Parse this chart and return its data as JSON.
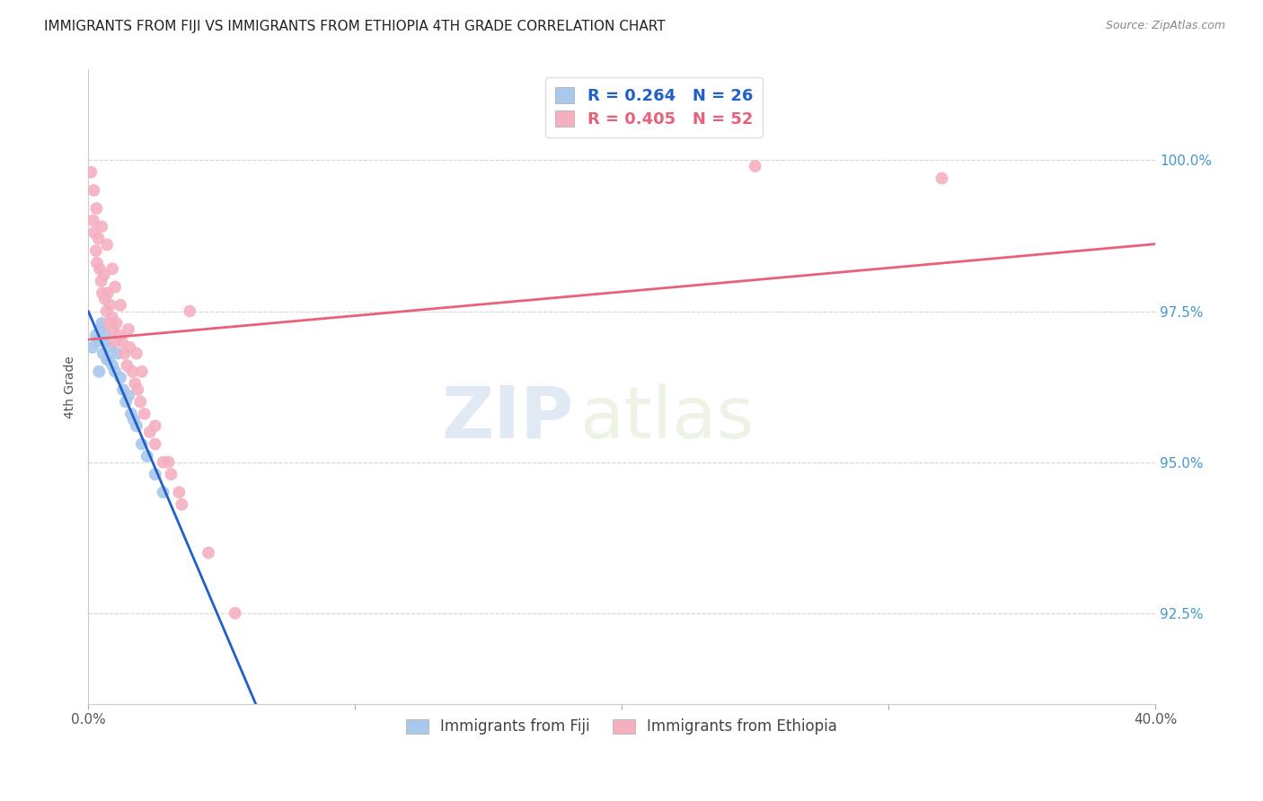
{
  "title": "IMMIGRANTS FROM FIJI VS IMMIGRANTS FROM ETHIOPIA 4TH GRADE CORRELATION CHART",
  "source": "Source: ZipAtlas.com",
  "ylabel": "4th Grade",
  "fiji_color": "#a8c8ec",
  "ethiopia_color": "#f5b0c0",
  "fiji_line_color": "#2060c8",
  "ethiopia_line_color": "#e8607a",
  "fiji_label": "Immigrants from Fiji",
  "ethiopia_label": "Immigrants from Ethiopia",
  "fiji_R": 0.264,
  "fiji_N": 26,
  "ethiopia_R": 0.405,
  "ethiopia_N": 52,
  "xmin": 0.0,
  "xmax": 40.0,
  "ymin": 91.0,
  "ymax": 101.5,
  "y_tick_positions": [
    92.5,
    95.0,
    97.5,
    100.0
  ],
  "y_tick_labels": [
    "92.5%",
    "95.0%",
    "97.5%",
    "100.0%"
  ],
  "x_tick_positions": [
    0,
    10,
    20,
    30,
    40
  ],
  "x_tick_labels": [
    "0.0%",
    "",
    "",
    "",
    "40.0%"
  ],
  "fiji_x": [
    0.15,
    0.28,
    0.35,
    0.45,
    0.5,
    0.55,
    0.6,
    0.65,
    0.7,
    0.8,
    0.9,
    1.0,
    1.1,
    1.2,
    1.3,
    1.4,
    1.5,
    1.6,
    1.8,
    2.0,
    2.2,
    2.5,
    0.4,
    0.75,
    1.7,
    2.8
  ],
  "fiji_y": [
    96.9,
    97.1,
    97.0,
    97.2,
    97.3,
    96.8,
    97.0,
    97.1,
    96.7,
    96.9,
    96.6,
    96.5,
    96.8,
    96.4,
    96.2,
    96.0,
    96.1,
    95.8,
    95.6,
    95.3,
    95.1,
    94.8,
    96.5,
    96.7,
    95.7,
    94.5
  ],
  "ethiopia_x": [
    0.1,
    0.18,
    0.22,
    0.28,
    0.32,
    0.38,
    0.42,
    0.48,
    0.52,
    0.58,
    0.62,
    0.68,
    0.72,
    0.78,
    0.82,
    0.88,
    0.92,
    0.98,
    1.05,
    1.15,
    1.25,
    1.35,
    1.45,
    1.55,
    1.65,
    1.75,
    1.85,
    1.95,
    2.1,
    2.3,
    2.5,
    2.8,
    3.1,
    3.4,
    3.8,
    0.2,
    0.3,
    0.5,
    0.7,
    0.9,
    1.0,
    1.2,
    1.5,
    1.8,
    2.0,
    2.5,
    3.0,
    3.5,
    4.5,
    5.5,
    25.0,
    32.0
  ],
  "ethiopia_y": [
    99.8,
    99.0,
    98.8,
    98.5,
    98.3,
    98.7,
    98.2,
    98.0,
    97.8,
    98.1,
    97.7,
    97.5,
    97.8,
    97.3,
    97.6,
    97.4,
    97.2,
    97.0,
    97.3,
    97.1,
    97.0,
    96.8,
    96.6,
    96.9,
    96.5,
    96.3,
    96.2,
    96.0,
    95.8,
    95.5,
    95.3,
    95.0,
    94.8,
    94.5,
    97.5,
    99.5,
    99.2,
    98.9,
    98.6,
    98.2,
    97.9,
    97.6,
    97.2,
    96.8,
    96.5,
    95.6,
    95.0,
    94.3,
    93.5,
    92.5,
    99.9,
    99.7
  ],
  "watermark_zip": "ZIP",
  "watermark_atlas": "atlas",
  "background_color": "#ffffff",
  "grid_color": "#cccccc",
  "legend_box_color": "#dddddd"
}
